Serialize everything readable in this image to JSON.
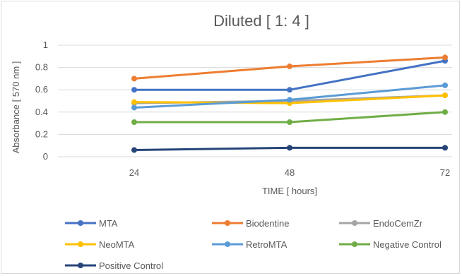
{
  "chart_data": {
    "type": "line",
    "title": "Diluted [ 1: 4 ]",
    "xlabel": "TIME [ hours]",
    "ylabel": "Absorbance [ 570 nm ]",
    "categories": [
      "24",
      "48",
      "72"
    ],
    "ylim": [
      0,
      1
    ],
    "yticks": [
      0,
      0.2,
      0.4,
      0.6,
      0.8,
      1
    ],
    "ytick_labels": [
      "0",
      "0.2",
      "0.4",
      "0.6",
      "0.8",
      "1"
    ],
    "grid": true,
    "legend_position": "bottom",
    "series": [
      {
        "name": "MTA",
        "color": "#4472C4",
        "values": [
          0.6,
          0.6,
          0.86
        ]
      },
      {
        "name": "Biodentine",
        "color": "#ED7D31",
        "values": [
          0.7,
          0.81,
          0.89
        ]
      },
      {
        "name": "EndoCemZr",
        "color": "#A5A5A5",
        "values": [
          0.48,
          0.5,
          0.55
        ]
      },
      {
        "name": "NeoMTA",
        "color": "#FFC000",
        "values": [
          0.49,
          0.48,
          0.55
        ]
      },
      {
        "name": "RetroMTA",
        "color": "#5B9BD5",
        "values": [
          0.44,
          0.51,
          0.64
        ]
      },
      {
        "name": "Negative Control",
        "color": "#70AD47",
        "values": [
          0.31,
          0.31,
          0.4
        ]
      },
      {
        "name": "Positive Control",
        "color": "#264478",
        "values": [
          0.06,
          0.08,
          0.08
        ]
      }
    ]
  }
}
